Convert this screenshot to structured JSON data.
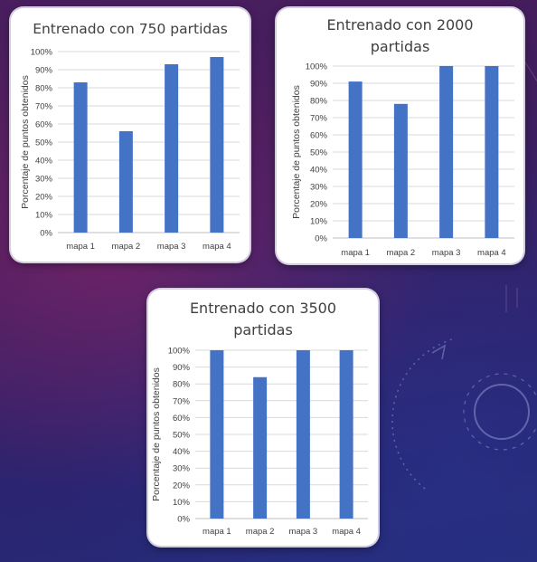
{
  "chart_data": [
    {
      "type": "bar",
      "title_lines": [
        "Entrenado con 750 partidas"
      ],
      "ylabel": "Porcentaje de puntos obtenidos",
      "xlabel": "",
      "categories": [
        "mapa 1",
        "mapa 2",
        "mapa 3",
        "mapa 4"
      ],
      "values": [
        83,
        56,
        93,
        97
      ],
      "value_unit": "%",
      "ylim": [
        0,
        100
      ],
      "yticks": [
        "0%",
        "10%",
        "20%",
        "30%",
        "40%",
        "50%",
        "60%",
        "70%",
        "80%",
        "90%",
        "100%"
      ],
      "grid": true,
      "bar_color": "#4472c4"
    },
    {
      "type": "bar",
      "title_lines": [
        "Entrenado con 2000",
        "partidas"
      ],
      "ylabel": "Porcentaje de puntos obtenidos",
      "xlabel": "",
      "categories": [
        "mapa 1",
        "mapa 2",
        "mapa 3",
        "mapa 4"
      ],
      "values": [
        91,
        78,
        100,
        100
      ],
      "value_unit": "%",
      "ylim": [
        0,
        100
      ],
      "yticks": [
        "0%",
        "10%",
        "20%",
        "30%",
        "40%",
        "50%",
        "60%",
        "70%",
        "80%",
        "90%",
        "100%"
      ],
      "grid": true,
      "bar_color": "#4472c4"
    },
    {
      "type": "bar",
      "title_lines": [
        "Entrenado con 3500",
        "partidas"
      ],
      "ylabel": "Porcentaje de puntos obtenidos",
      "xlabel": "",
      "categories": [
        "mapa 1",
        "mapa 2",
        "mapa 3",
        "mapa 4"
      ],
      "values": [
        100,
        84,
        100,
        100
      ],
      "value_unit": "%",
      "ylim": [
        0,
        100
      ],
      "yticks": [
        "0%",
        "10%",
        "20%",
        "30%",
        "40%",
        "50%",
        "60%",
        "70%",
        "80%",
        "90%",
        "100%"
      ],
      "grid": true,
      "bar_color": "#4472c4"
    }
  ]
}
